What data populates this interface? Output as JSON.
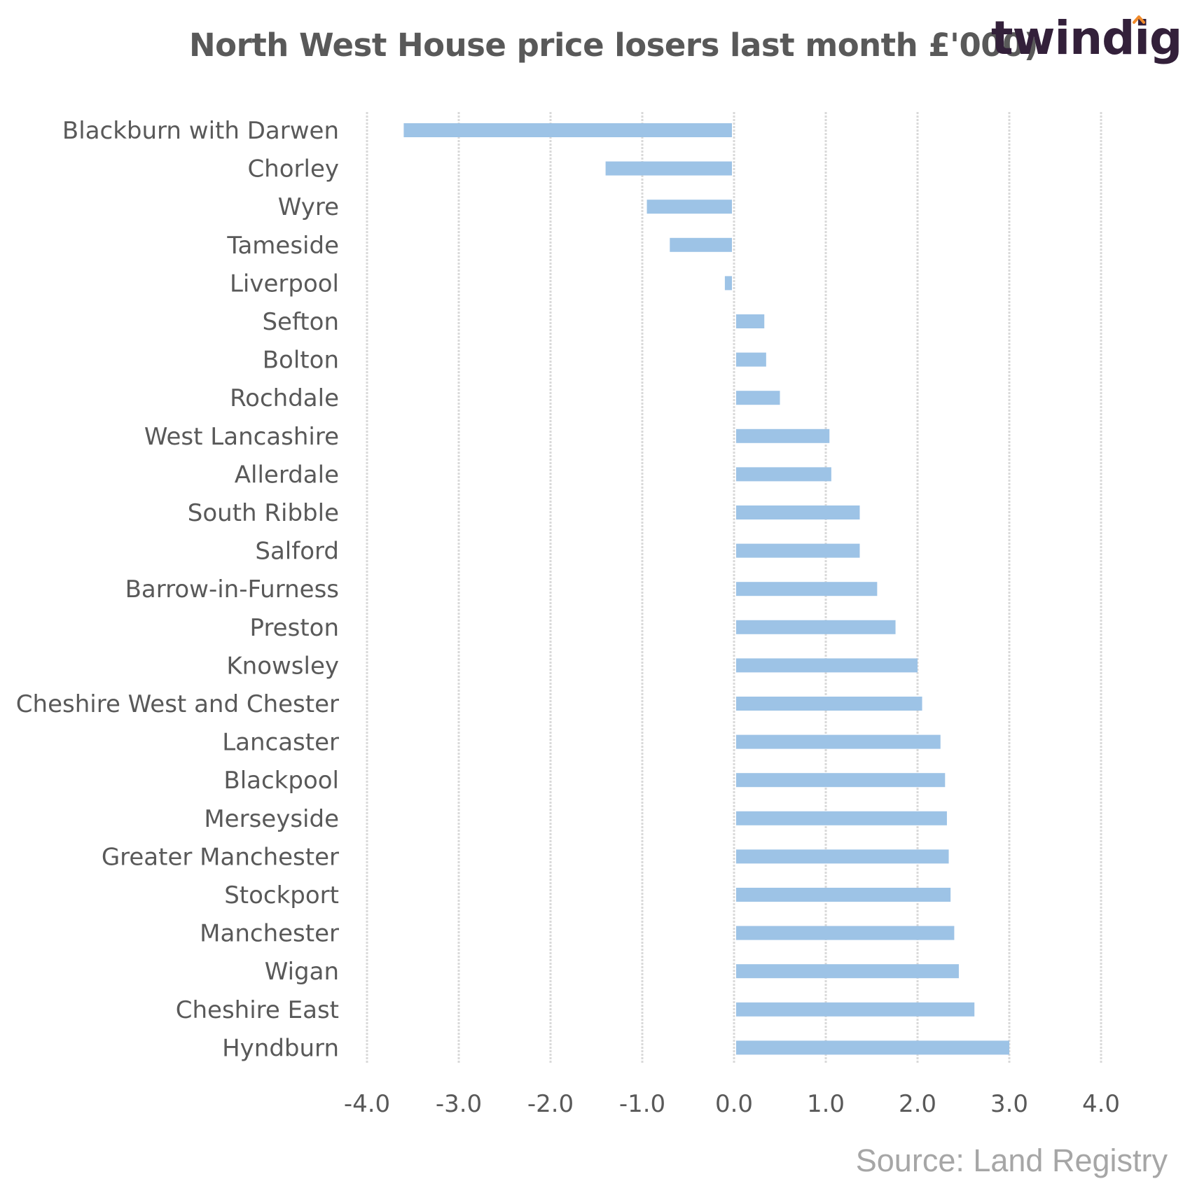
{
  "title": "North West House price losers last month £'000)",
  "brand": {
    "name": "twindig",
    "text_color": "#33203a",
    "accent_color": "#f08a2b"
  },
  "source": "Source: Land Registry",
  "chart_data": {
    "type": "bar",
    "orientation": "horizontal",
    "title": "North West House price losers last month £'000)",
    "categories": [
      "Blackburn with Darwen",
      "Chorley",
      "Wyre",
      "Tameside",
      "Liverpool",
      "Sefton",
      "Bolton",
      "Rochdale",
      "West Lancashire",
      "Allerdale",
      "South Ribble",
      "Salford",
      "Barrow-in-Furness",
      "Preston",
      "Knowsley",
      "Cheshire West and Chester",
      "Lancaster",
      "Blackpool",
      "Merseyside",
      "Greater Manchester",
      "Stockport",
      "Manchester",
      "Wigan",
      "Cheshire East",
      "Hyndburn"
    ],
    "values": [
      -3.6,
      -1.4,
      -0.95,
      -0.7,
      -0.1,
      0.33,
      0.35,
      0.5,
      1.04,
      1.06,
      1.37,
      1.37,
      1.56,
      1.76,
      2.0,
      2.05,
      2.25,
      2.3,
      2.32,
      2.34,
      2.36,
      2.4,
      2.45,
      2.62,
      3.0
    ],
    "xlim": [
      -4.0,
      4.0
    ],
    "x_ticks": [
      "-4.0",
      "-3.0",
      "-2.0",
      "-1.0",
      "0.0",
      "1.0",
      "2.0",
      "3.0",
      "4.0"
    ],
    "x_tick_values": [
      -4,
      -3,
      -2,
      -1,
      0,
      1,
      2,
      3,
      4
    ],
    "xlabel": "",
    "ylabel": "",
    "grid": "vertical",
    "legend": "none",
    "bar_color": "#9dc3e6",
    "grid_color": "#d9d9d9",
    "text_color": "#595959"
  }
}
